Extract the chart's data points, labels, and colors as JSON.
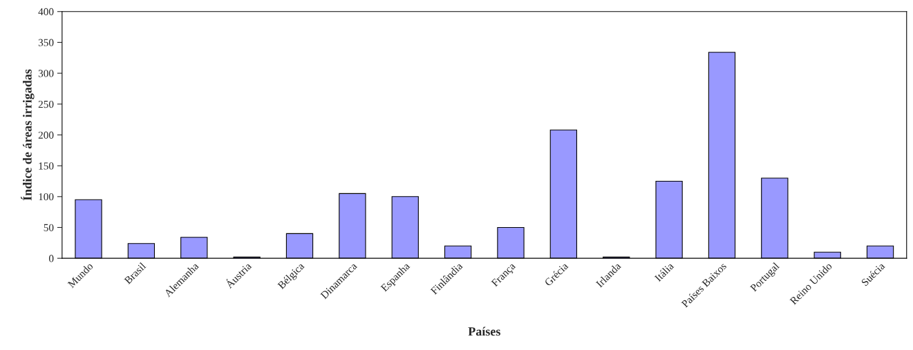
{
  "chart_data": {
    "type": "bar",
    "xlabel": "Países",
    "ylabel": "Índice de áreas irrigadas",
    "categories": [
      "Mundo",
      "Brasil",
      "Alemanha",
      "Áustria",
      "Bélgica",
      "Dinamarca",
      "Espanha",
      "Finlândia",
      "França",
      "Grécia",
      "Irlanda",
      "Itália",
      "Países Baixos",
      "Portugal",
      "Reino Unido",
      "Suécia"
    ],
    "values": [
      95,
      24,
      34,
      2,
      40,
      105,
      100,
      20,
      50,
      208,
      2,
      125,
      334,
      130,
      10,
      20
    ],
    "color": "#9999ff",
    "ylim": [
      0,
      400
    ],
    "yticks": [
      0,
      50,
      100,
      150,
      200,
      250,
      300,
      350,
      400
    ],
    "grid": false,
    "legend": false
  }
}
